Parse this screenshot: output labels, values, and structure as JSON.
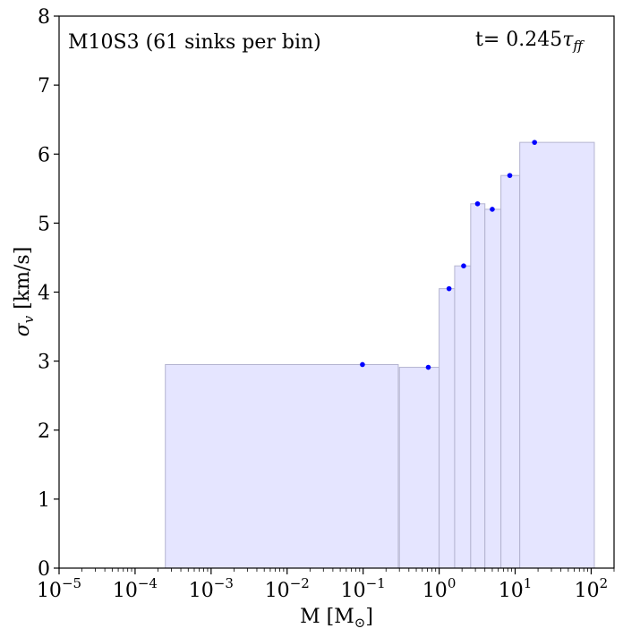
{
  "chart_data": {
    "type": "bar",
    "title": "",
    "xlabel": "M [M",
    "xlabel_sub": "⊙",
    "xlabel_close": "]",
    "ylabel": "σ",
    "ylabel_sub": "v",
    "ylabel_unit": " [km/s]",
    "xscale": "log",
    "xlim": [
      1e-05,
      200
    ],
    "ylim": [
      0,
      8
    ],
    "x_ticks": [
      {
        "value": 1e-05,
        "base": "10",
        "exp": "−5"
      },
      {
        "value": 0.0001,
        "base": "10",
        "exp": "−4"
      },
      {
        "value": 0.001,
        "base": "10",
        "exp": "−3"
      },
      {
        "value": 0.01,
        "base": "10",
        "exp": "−2"
      },
      {
        "value": 0.1,
        "base": "10",
        "exp": "−1"
      },
      {
        "value": 1,
        "base": "10",
        "exp": "0"
      },
      {
        "value": 10,
        "base": "10",
        "exp": "1"
      },
      {
        "value": 100,
        "base": "10",
        "exp": "2"
      }
    ],
    "y_ticks": [
      "0",
      "1",
      "2",
      "3",
      "4",
      "5",
      "6",
      "7",
      "8"
    ],
    "annotation_left": "M10S3 (61 sinks per bin)",
    "annotation_right_prefix": "t= 0.245",
    "annotation_right_symbol": "τ",
    "annotation_right_sub": "ff",
    "grid": false,
    "bin_fill_color": "#e5e5ff",
    "bin_edge_color": "#b4b4d0",
    "point_color": "#0000ff",
    "bins": [
      {
        "x_min": 0.00025,
        "x_max": 0.29,
        "value": 2.95
      },
      {
        "x_min": 0.3,
        "x_max": 1.0,
        "value": 2.91
      },
      {
        "x_min": 1.0,
        "x_max": 1.6,
        "value": 4.05
      },
      {
        "x_min": 1.6,
        "x_max": 2.6,
        "value": 4.38
      },
      {
        "x_min": 2.6,
        "x_max": 4.0,
        "value": 5.28
      },
      {
        "x_min": 4.0,
        "x_max": 6.5,
        "value": 5.2
      },
      {
        "x_min": 6.5,
        "x_max": 11.5,
        "value": 5.69
      },
      {
        "x_min": 11.5,
        "x_max": 110,
        "value": 6.17
      }
    ],
    "points": [
      {
        "x": 0.098,
        "y": 2.95
      },
      {
        "x": 0.72,
        "y": 2.91
      },
      {
        "x": 1.35,
        "y": 4.05
      },
      {
        "x": 2.1,
        "y": 4.38
      },
      {
        "x": 3.2,
        "y": 5.28
      },
      {
        "x": 5.0,
        "y": 5.2
      },
      {
        "x": 8.5,
        "y": 5.69
      },
      {
        "x": 18,
        "y": 6.17
      }
    ]
  }
}
